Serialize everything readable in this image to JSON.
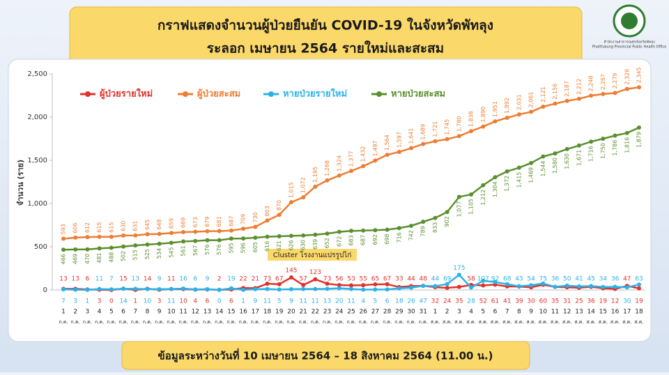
{
  "header": {
    "title_lines": [
      "กราฟแสดงจำนวนผู้ป่วยยืนยัน COVID-19 ในจังหวัดพัทลุง",
      "ระลอก เมษายน 2564 รายใหม่และสะสม"
    ],
    "logo_text": [
      "สำนักงานสาธารณสุขจังหวัดพัทลุง",
      "Phatthalung Provincial Public Health Office"
    ]
  },
  "footer": "ข้อมูลระหว่างวันที่ 10 เมษายน 2564 – 18 สิงหาคม 2564 (11.00 น.)",
  "chart_data": {
    "type": "line",
    "y_label": "จำนวน (ราย)",
    "annotation": "Cluster โรงงานแปรรูปไก่",
    "categories": [
      "1",
      "2",
      "3",
      "4",
      "5",
      "6",
      "7",
      "8",
      "9",
      "10",
      "11",
      "12",
      "13",
      "14",
      "15",
      "16",
      "17",
      "18",
      "19",
      "20",
      "21",
      "22",
      "23",
      "24",
      "25",
      "26",
      "27",
      "28",
      "29",
      "30",
      "31",
      "1",
      "2",
      "3",
      "4",
      "5",
      "6",
      "7",
      "8",
      "9",
      "10",
      "11",
      "12",
      "13",
      "14",
      "15",
      "16",
      "17",
      "18"
    ],
    "month_labels": [
      "ก.ค.",
      "ก.ค.",
      "ก.ค.",
      "ก.ค.",
      "ก.ค.",
      "ก.ค.",
      "ก.ค.",
      "ก.ค.",
      "ก.ค.",
      "ก.ค.",
      "ก.ค.",
      "ก.ค.",
      "ก.ค.",
      "ก.ค.",
      "ก.ค.",
      "ก.ค.",
      "ก.ค.",
      "ก.ค.",
      "ก.ค.",
      "ก.ค.",
      "ก.ค.",
      "ก.ค.",
      "ก.ค.",
      "ก.ค.",
      "ก.ค.",
      "ก.ค.",
      "ก.ค.",
      "ก.ค.",
      "ก.ค.",
      "ก.ค.",
      "ก.ค.",
      "ส.ค.",
      "ส.ค.",
      "ส.ค.",
      "ส.ค.",
      "ส.ค.",
      "ส.ค.",
      "ส.ค.",
      "ส.ค.",
      "ส.ค.",
      "ส.ค.",
      "ส.ค.",
      "ส.ค.",
      "ส.ค.",
      "ส.ค.",
      "ส.ค.",
      "ส.ค.",
      "ส.ค.",
      "ส.ค."
    ],
    "ylim": [
      0,
      2500
    ],
    "yticks": [
      0,
      500,
      {
        "value": 1000,
        "label": "1,000"
      },
      {
        "value": 1500,
        "label": "1,500"
      },
      {
        "value": 2000,
        "label": "2,000"
      },
      {
        "value": 2500,
        "label": "2,500"
      }
    ],
    "grid": false,
    "legend": "top-left",
    "series": [
      {
        "name": "ผู้ป่วยรายใหม่",
        "color": "#e0312b",
        "values": [
          13,
          13,
          6,
          3,
          0,
          15,
          1,
          14,
          3,
          11,
          10,
          4,
          6,
          2,
          6,
          22,
          21,
          73,
          67,
          145,
          57,
          123,
          73,
          56,
          53,
          55,
          65,
          67,
          33,
          44,
          48,
          32,
          24,
          35,
          58,
          52,
          61,
          41,
          39,
          30,
          60,
          35,
          31,
          25,
          36,
          19,
          12,
          47,
          19
        ]
      },
      {
        "name": "ผู้ป่วยสะสม",
        "color": "#ed7d31",
        "values": [
          593,
          606,
          612,
          615,
          615,
          630,
          631,
          645,
          648,
          659,
          669,
          673,
          679,
          681,
          687,
          709,
          730,
          803,
          870,
          1015,
          1072,
          1195,
          1268,
          1324,
          1377,
          1432,
          1497,
          1564,
          1597,
          1641,
          1689,
          1721,
          1745,
          1780,
          1838,
          1890,
          1951,
          1992,
          2031,
          2061,
          2121,
          2156,
          2187,
          2212,
          2248,
          2267,
          2279,
          2326,
          2345
        ],
        "value_labels": [
          "593",
          "606",
          "612",
          "615",
          "615",
          "630",
          "631",
          "645",
          "648",
          "659",
          "669",
          "673",
          "679",
          "681",
          "687",
          "709",
          "730",
          "803",
          "870",
          "1,015",
          "1,072",
          "1,195",
          "1,268",
          "1,324",
          "1,377",
          "1,432",
          "1,497",
          "1,564",
          "1,597",
          "1,641",
          "1,689",
          "1,721",
          "1,745",
          "1,780",
          "1,838",
          "1,890",
          "1,951",
          "1,992",
          "2,031",
          "2,061",
          "2,121",
          "2,156",
          "2,187",
          "2,212",
          "2,248",
          "2,267",
          "2,279",
          "2,326",
          "2,345"
        ]
      },
      {
        "name": "หายป่วยรายใหม่",
        "color": "#2ab2e8",
        "values": [
          7,
          3,
          1,
          11,
          7,
          14,
          13,
          10,
          9,
          11,
          16,
          6,
          9,
          0,
          19,
          1,
          9,
          11,
          5,
          9,
          11,
          11,
          13,
          20,
          11,
          4,
          5,
          6,
          18,
          26,
          47,
          44,
          69,
          175,
          28,
          107,
          92,
          68,
          43,
          54,
          75,
          36,
          50,
          41,
          45,
          34,
          36,
          30,
          63
        ]
      },
      {
        "name": "หายป่วยสะสม",
        "color": "#5a8f2e",
        "values": [
          466,
          469,
          470,
          481,
          488,
          502,
          515,
          525,
          534,
          545,
          561,
          567,
          576,
          576,
          595,
          596,
          605,
          616,
          621,
          626,
          630,
          639,
          652,
          672,
          683,
          687,
          692,
          698,
          716,
          742,
          789,
          833,
          902,
          1077,
          1105,
          1212,
          1304,
          1372,
          1415,
          1469,
          1544,
          1580,
          1630,
          1671,
          1716,
          1750,
          1786,
          1816,
          1879
        ],
        "value_labels": [
          "466",
          "469",
          "470",
          "481",
          "488",
          "502",
          "515",
          "525",
          "534",
          "545",
          "561",
          "567",
          "576",
          "576",
          "595",
          "596",
          "605",
          "616",
          "621",
          "626",
          "630",
          "639",
          "652",
          "672",
          "683",
          "687",
          "692",
          "698",
          "716",
          "742",
          "789",
          "833",
          "902",
          "1,077",
          "1,105",
          "1,212",
          "1,304",
          "1,372",
          "1,415",
          "1,469",
          "1,544",
          "1,580",
          "1,630",
          "1,671",
          "1,716",
          "1,750",
          "1,786",
          "1,816",
          "1,879"
        ]
      }
    ]
  }
}
